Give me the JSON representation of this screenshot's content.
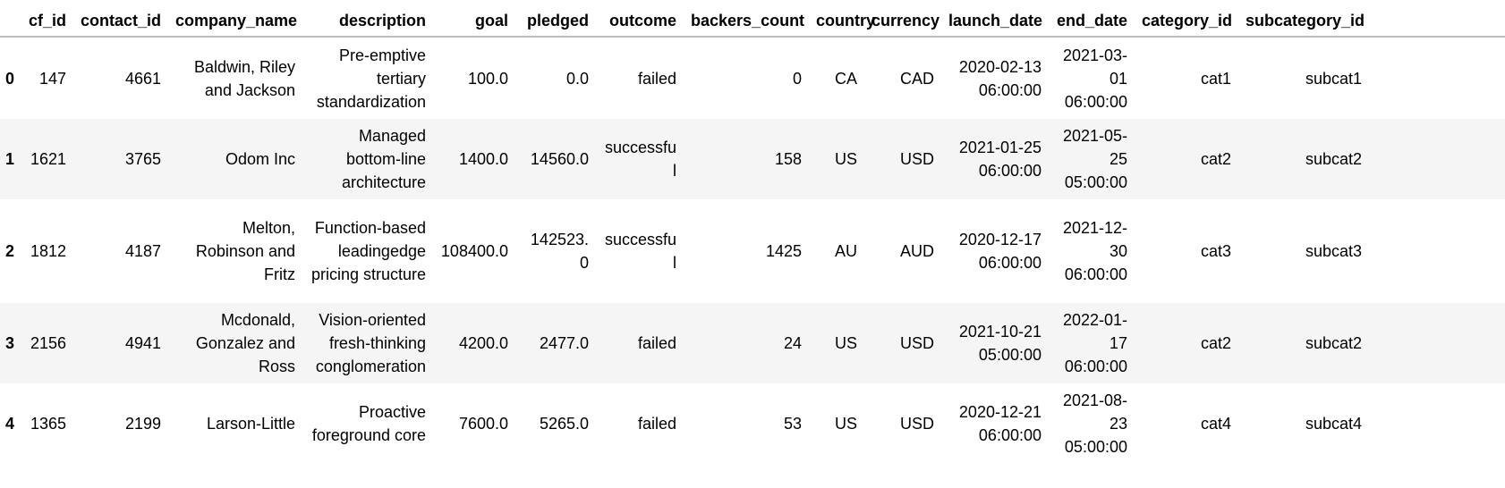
{
  "table": {
    "index_header": "",
    "columns": [
      "cf_id",
      "contact_id",
      "company_name",
      "description",
      "goal",
      "pledged",
      "outcome",
      "backers_count",
      "country",
      "currency",
      "launch_date",
      "end_date",
      "category_id",
      "subcategory_id"
    ],
    "rows": [
      {
        "index": "0",
        "cells": [
          "147",
          "4661",
          "Baldwin, Riley and Jackson",
          "Pre-emptive tertiary standardization",
          "100.0",
          "0.0",
          "failed",
          "0",
          "CA",
          "CAD",
          "2020-02-13 06:00:00",
          "2021-03-01 06:00:00",
          "cat1",
          "subcat1"
        ]
      },
      {
        "index": "1",
        "cells": [
          "1621",
          "3765",
          "Odom Inc",
          "Managed bottom-line architecture",
          "1400.0",
          "14560.0",
          "successful",
          "158",
          "US",
          "USD",
          "2021-01-25 06:00:00",
          "2021-05-25 05:00:00",
          "cat2",
          "subcat2"
        ]
      },
      {
        "index": "2",
        "cells": [
          "1812",
          "4187",
          "Melton, Robinson and Fritz",
          "Function-based leadingedge pricing structure",
          "108400.0",
          "142523.0",
          "successful",
          "1425",
          "AU",
          "AUD",
          "2020-12-17 06:00:00",
          "2021-12-30 06:00:00",
          "cat3",
          "subcat3"
        ]
      },
      {
        "index": "3",
        "cells": [
          "2156",
          "4941",
          "Mcdonald, Gonzalez and Ross",
          "Vision-oriented fresh-thinking conglomeration",
          "4200.0",
          "2477.0",
          "failed",
          "24",
          "US",
          "USD",
          "2021-10-21 05:00:00",
          "2022-01-17 06:00:00",
          "cat2",
          "subcat2"
        ]
      },
      {
        "index": "4",
        "cells": [
          "1365",
          "2199",
          "Larson-Little",
          "Proactive foreground core",
          "7600.0",
          "5265.0",
          "failed",
          "53",
          "US",
          "USD",
          "2020-12-21 06:00:00",
          "2021-08-23 05:00:00",
          "cat4",
          "subcat4"
        ]
      }
    ]
  }
}
